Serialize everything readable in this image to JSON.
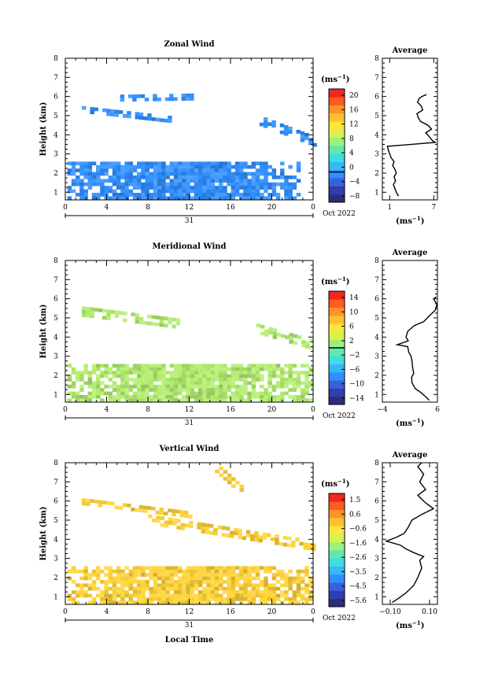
{
  "figure": {
    "x_axis_title": "Local Time",
    "date_label": "31",
    "month_label": "Oct 2022",
    "x_ticks": [
      "0",
      "4",
      "8",
      "12",
      "16",
      "20",
      "0"
    ],
    "height_ticks": [
      "1",
      "2",
      "3",
      "4",
      "5",
      "6",
      "7",
      "8"
    ],
    "unit_label": "(ms",
    "unit_exp": "−1",
    "avg_unit_label": "(ms",
    "avg_unit_exp": "−1",
    "ylabel": "Height (km)"
  },
  "chart_data": [
    {
      "type": "heatmap",
      "title": "Zonal Wind",
      "xlabel": "",
      "ylabel": "Height (km)",
      "xlim": [
        0,
        24
      ],
      "ylim": [
        0.6,
        8
      ],
      "colorbar": {
        "min": -8,
        "max": 22,
        "ticks": [
          "20",
          "16",
          "12",
          "8",
          "4",
          "0",
          "−4",
          "−8"
        ],
        "zero_line": 0
      },
      "base_color": "#2f8fff",
      "layers": [
        {
          "name": "lower layer",
          "x": [
            0.2,
            22.5
          ],
          "h": [
            0.7,
            2.6
          ],
          "value_range": [
            -6,
            3
          ]
        },
        {
          "name": "layer near 6 km",
          "x": [
            5.3,
            12.3
          ],
          "h": [
            5.8,
            6.1
          ],
          "value_range": [
            5,
            8
          ]
        },
        {
          "name": "layer near 5.3 km",
          "x": [
            1.6,
            10.5
          ],
          "h": [
            4.6,
            5.5
          ],
          "value_range": [
            4,
            7
          ]
        },
        {
          "name": "layer near 4 km",
          "x": [
            18.8,
            24
          ],
          "h": [
            3.5,
            5.0
          ],
          "value_range": [
            3,
            6
          ]
        }
      ],
      "average": {
        "title": "Average",
        "xlim": [
          0,
          7.5
        ],
        "xticks": [
          "1",
          "7"
        ],
        "points": [
          [
            2.2,
            0.8
          ],
          [
            1.9,
            1.0
          ],
          [
            1.7,
            1.2
          ],
          [
            1.5,
            1.4
          ],
          [
            1.8,
            1.6
          ],
          [
            1.6,
            1.8
          ],
          [
            1.9,
            2.0
          ],
          [
            1.7,
            2.2
          ],
          [
            1.4,
            2.4
          ],
          [
            1.6,
            2.6
          ],
          [
            1.2,
            2.8
          ],
          [
            1.0,
            3.0
          ],
          [
            0.8,
            3.2
          ],
          [
            0.7,
            3.4
          ],
          [
            7.2,
            3.6
          ],
          [
            6.8,
            3.7
          ],
          [
            6.4,
            3.9
          ],
          [
            5.9,
            4.1
          ],
          [
            6.7,
            4.3
          ],
          [
            6.2,
            4.5
          ],
          [
            5.2,
            4.7
          ],
          [
            4.9,
            4.9
          ],
          [
            4.7,
            5.1
          ],
          [
            5.5,
            5.3
          ],
          [
            5.3,
            5.5
          ],
          [
            4.8,
            5.7
          ],
          [
            5.0,
            5.9
          ],
          [
            5.4,
            6.0
          ],
          [
            6.0,
            6.1
          ]
        ]
      }
    },
    {
      "type": "heatmap",
      "title": "Meridional Wind",
      "xlabel": "",
      "ylabel": "Height (km)",
      "xlim": [
        0,
        24
      ],
      "ylim": [
        0.6,
        8
      ],
      "colorbar": {
        "min": -15,
        "max": 15,
        "ticks": [
          "14",
          "10",
          "6",
          "2",
          "−2",
          "−6",
          "−10",
          "−14"
        ],
        "zero_line": 0
      },
      "base_color": "#b4ee70",
      "layers": [
        {
          "name": "lower layer",
          "x": [
            0.2,
            23.8
          ],
          "h": [
            0.7,
            2.6
          ],
          "value_range": [
            -2,
            6
          ]
        },
        {
          "name": "layer near 5.4 km",
          "x": [
            1.6,
            11
          ],
          "h": [
            4.6,
            5.6
          ],
          "value_range": [
            2,
            6
          ]
        },
        {
          "name": "layer near 4 km",
          "x": [
            18.5,
            23.9
          ],
          "h": [
            3.5,
            4.7
          ],
          "value_range": [
            -8,
            -4
          ]
        }
      ],
      "average": {
        "title": "Average",
        "xlim": [
          -4,
          6
        ],
        "xticks": [
          "−4",
          "6"
        ],
        "points": [
          [
            4.5,
            0.7
          ],
          [
            3.8,
            0.9
          ],
          [
            3.0,
            1.1
          ],
          [
            2.0,
            1.3
          ],
          [
            1.4,
            1.6
          ],
          [
            1.3,
            1.9
          ],
          [
            1.7,
            2.1
          ],
          [
            1.5,
            2.4
          ],
          [
            1.4,
            2.7
          ],
          [
            1.2,
            3.0
          ],
          [
            0.8,
            3.2
          ],
          [
            0.6,
            3.5
          ],
          [
            -1.3,
            3.6
          ],
          [
            0.7,
            3.8
          ],
          [
            0.3,
            4.0
          ],
          [
            0.6,
            4.3
          ],
          [
            1.8,
            4.6
          ],
          [
            3.5,
            4.8
          ],
          [
            4.5,
            5.1
          ],
          [
            5.6,
            5.4
          ],
          [
            5.9,
            5.7
          ],
          [
            5.3,
            6.0
          ],
          [
            5.8,
            6.1
          ]
        ]
      }
    },
    {
      "type": "heatmap",
      "title": "Vertical Wind",
      "xlabel": "Local Time",
      "ylabel": "Height (km)",
      "xlim": [
        0,
        24
      ],
      "ylim": [
        0.6,
        8
      ],
      "colorbar": {
        "min": -6,
        "max": 2,
        "ticks": [
          "1.5",
          "0.6",
          "−0.6",
          "−1.6",
          "−2.6",
          "−3.5",
          "−4.5",
          "−5.6"
        ],
        "zero_line": null
      },
      "base_color": "#ffd438",
      "layers": [
        {
          "name": "lower layer",
          "x": [
            0.2,
            23.8
          ],
          "h": [
            0.7,
            2.6
          ],
          "value_range": [
            -0.3,
            0.6
          ]
        },
        {
          "name": "layer near 6 km",
          "x": [
            0.8,
            12
          ],
          "h": [
            5.1,
            6.2
          ],
          "value_range": [
            0,
            0.5
          ]
        },
        {
          "name": "layer near 5 km",
          "x": [
            8,
            24
          ],
          "h": [
            3.4,
            5.3
          ],
          "value_range": [
            0,
            0.5
          ]
        },
        {
          "name": "upper layer",
          "x": [
            14.5,
            17.2
          ],
          "h": [
            6.2,
            8.0
          ],
          "value_range": [
            0,
            0.5
          ]
        }
      ],
      "average": {
        "title": "Average",
        "xlim": [
          -0.14,
          0.14
        ],
        "xticks": [
          "−0.10",
          "0.10"
        ],
        "points": [
          [
            -0.09,
            0.7
          ],
          [
            -0.06,
            0.9
          ],
          [
            -0.02,
            1.2
          ],
          [
            0.02,
            1.6
          ],
          [
            0.04,
            2.0
          ],
          [
            0.06,
            2.5
          ],
          [
            0.05,
            2.9
          ],
          [
            0.07,
            3.1
          ],
          [
            0.02,
            3.3
          ],
          [
            -0.02,
            3.5
          ],
          [
            -0.05,
            3.7
          ],
          [
            -0.12,
            3.9
          ],
          [
            -0.07,
            4.1
          ],
          [
            -0.03,
            4.3
          ],
          [
            -0.01,
            4.6
          ],
          [
            0.01,
            5.0
          ],
          [
            0.06,
            5.3
          ],
          [
            0.12,
            5.6
          ],
          [
            0.08,
            5.9
          ],
          [
            0.04,
            6.3
          ],
          [
            0.08,
            6.6
          ],
          [
            0.05,
            7.0
          ],
          [
            0.07,
            7.4
          ],
          [
            0.04,
            7.8
          ],
          [
            0.06,
            8.0
          ]
        ]
      }
    }
  ]
}
